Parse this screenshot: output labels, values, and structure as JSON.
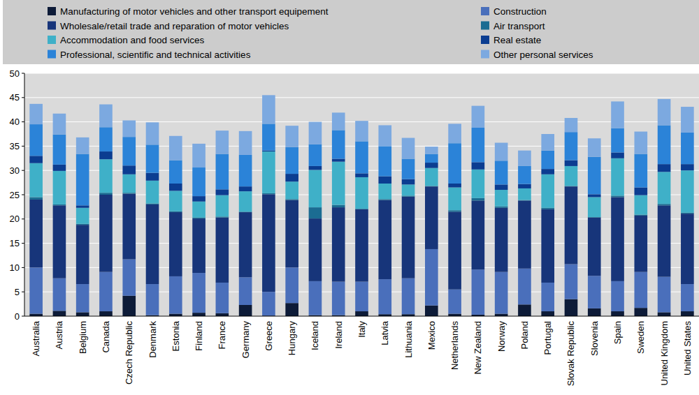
{
  "chart_data": {
    "type": "bar",
    "stacked": true,
    "grid": true,
    "legend": "top",
    "categories": [
      "Australia",
      "Austria",
      "Belgium",
      "Canada",
      "Czech Republic",
      "Denmark",
      "Estonia",
      "Finland",
      "France",
      "Germany",
      "Greece",
      "Hungary",
      "Iceland",
      "Ireland",
      "Italy",
      "Latvia",
      "Lithuania",
      "Mexico",
      "Netherlands",
      "New Zealand",
      "Norway",
      "Poland",
      "Portugal",
      "Slovak Republic",
      "Slovenia",
      "Spain",
      "Sweden",
      "United Kingdom",
      "United States"
    ],
    "ylim": [
      0,
      50
    ],
    "yticks": [
      0,
      5,
      10,
      15,
      20,
      25,
      30,
      35,
      40,
      45,
      50
    ],
    "series": [
      {
        "name": "Manufacturing of motor vehicles and other transport equipement",
        "color": "#0d1b38",
        "values": [
          0.5,
          1.1,
          0.8,
          1.0,
          4.2,
          0.2,
          0.5,
          0.7,
          0.6,
          2.3,
          0.1,
          2.7,
          0.2,
          0.2,
          1.0,
          0.4,
          0.4,
          2.2,
          0.5,
          0.3,
          0.5,
          2.4,
          1.0,
          3.5,
          1.6,
          1.0,
          1.7,
          0.8,
          1.0
        ]
      },
      {
        "name": "Construction",
        "color": "#4a6fbb",
        "values": [
          9.5,
          6.7,
          5.8,
          8.1,
          7.5,
          6.4,
          7.7,
          8.2,
          6.3,
          5.7,
          4.9,
          7.3,
          7.0,
          6.9,
          6.1,
          7.2,
          7.4,
          11.6,
          5.0,
          9.3,
          8.6,
          7.4,
          5.9,
          7.2,
          6.7,
          6.2,
          7.4,
          7.3,
          5.6
        ]
      },
      {
        "name": "Wholesale/retail trade and reparation of motor vehicles",
        "color": "#17357a",
        "values": [
          14.0,
          15.0,
          12.2,
          15.9,
          13.5,
          16.4,
          13.2,
          11.2,
          13.4,
          13.4,
          20.1,
          13.9,
          12.9,
          15.3,
          14.9,
          16.3,
          16.8,
          12.9,
          16.0,
          14.2,
          13.2,
          14.0,
          15.1,
          16.0,
          12.0,
          17.3,
          11.6,
          14.7,
          14.5
        ]
      },
      {
        "name": "Air transport",
        "color": "#1b6c92",
        "values": [
          0.5,
          0.2,
          0.2,
          0.4,
          0.2,
          0.2,
          0.2,
          0.2,
          0.2,
          0.1,
          0.2,
          0.2,
          2.3,
          0.5,
          0.1,
          0.2,
          0.2,
          0.1,
          0.3,
          0.5,
          0.3,
          0.1,
          0.3,
          0.1,
          0.1,
          0.3,
          0.2,
          0.3,
          0.2
        ]
      },
      {
        "name": "Accommodation and food services",
        "color": "#3fb0c8",
        "values": [
          7.0,
          6.9,
          3.3,
          6.9,
          3.8,
          4.7,
          4.2,
          3.3,
          4.4,
          4.2,
          8.6,
          3.6,
          7.7,
          8.9,
          6.5,
          3.2,
          2.3,
          3.7,
          4.7,
          5.9,
          3.4,
          2.4,
          6.9,
          4.1,
          4.1,
          7.7,
          4.0,
          6.6,
          8.7
        ]
      },
      {
        "name": "Real estate",
        "color": "#0b3d91",
        "values": [
          1.5,
          1.3,
          0.5,
          1.6,
          1.8,
          1.6,
          1.5,
          1.1,
          1.2,
          1.0,
          0.2,
          1.6,
          0.8,
          0.6,
          0.8,
          1.5,
          1.1,
          1.1,
          0.8,
          1.5,
          1.1,
          0.9,
          1.1,
          1.2,
          0.6,
          1.2,
          1.6,
          1.6,
          1.3
        ]
      },
      {
        "name": "Professional, scientific and technical activities",
        "color": "#2b83d8",
        "values": [
          6.5,
          6.2,
          10.6,
          5.0,
          5.9,
          5.8,
          4.8,
          5.9,
          7.3,
          6.5,
          5.5,
          5.5,
          4.5,
          5.9,
          6.6,
          6.2,
          4.2,
          1.8,
          8.3,
          7.1,
          4.9,
          3.7,
          3.8,
          5.8,
          7.7,
          5.0,
          6.9,
          8.0,
          6.5
        ]
      },
      {
        "name": "Other personal services",
        "color": "#7ca9e0",
        "values": [
          4.2,
          4.3,
          3.4,
          4.7,
          3.4,
          4.6,
          5.0,
          4.9,
          4.8,
          4.9,
          5.9,
          4.4,
          4.6,
          3.6,
          4.2,
          4.3,
          4.3,
          1.5,
          4.0,
          4.5,
          3.7,
          3.2,
          3.4,
          2.9,
          3.8,
          5.5,
          4.6,
          5.4,
          5.3
        ]
      }
    ]
  }
}
